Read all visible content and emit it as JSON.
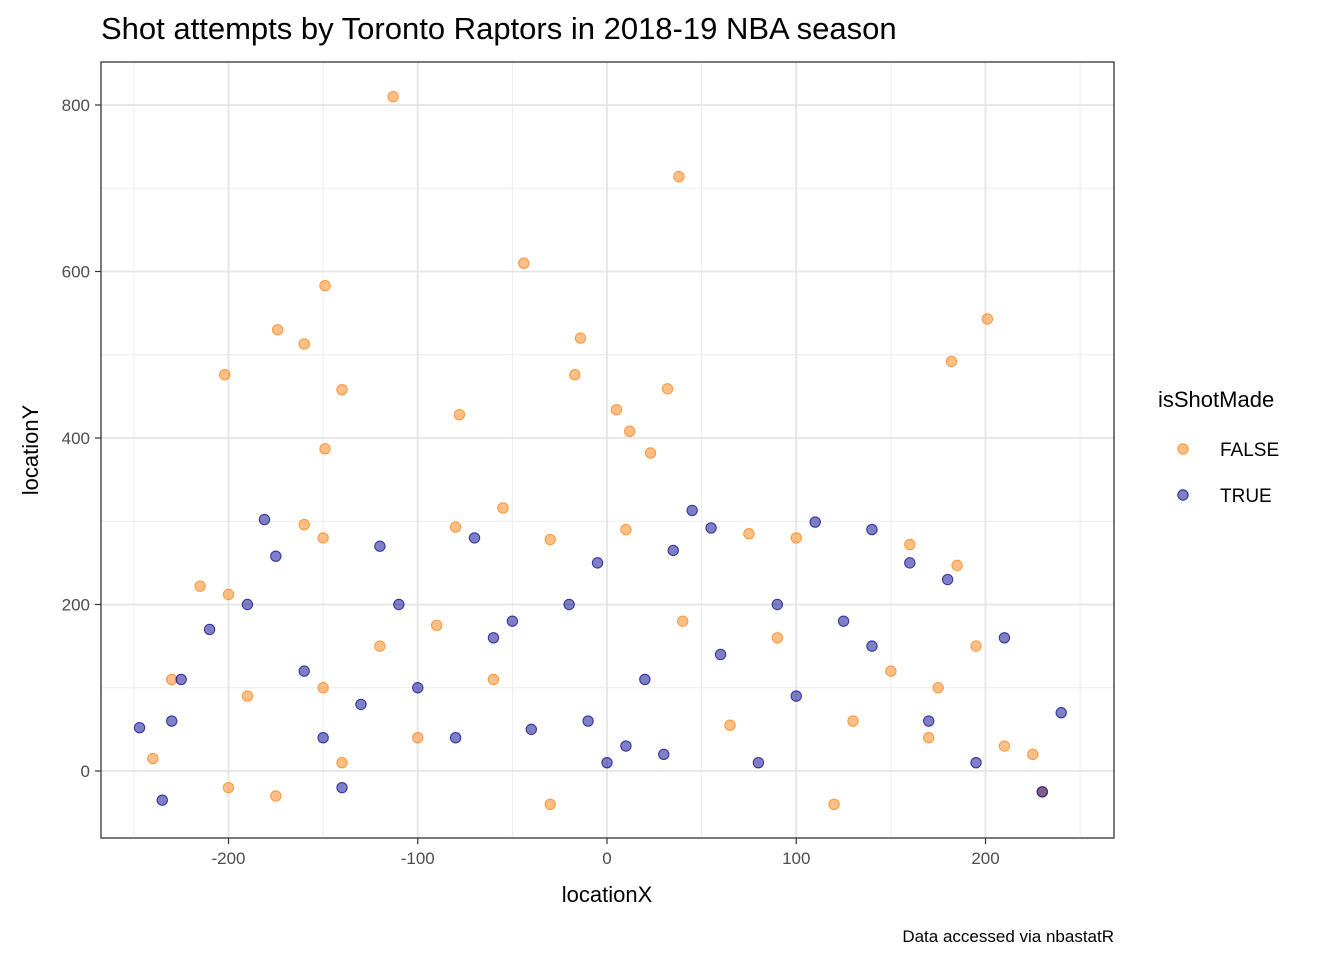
{
  "chart_data": {
    "type": "scatter",
    "title": "Shot attempts by Toronto Raptors in 2018-19 NBA season",
    "caption": "Data accessed via nbastatR",
    "xlabel": "locationX",
    "ylabel": "locationY",
    "xlim": [
      -250,
      250
    ],
    "ylim": [
      -50,
      815
    ],
    "x_ticks": [
      -200,
      -100,
      0,
      100,
      200
    ],
    "y_ticks": [
      0,
      200,
      400,
      600,
      800
    ],
    "x_tick_labels": [
      "-200",
      "-100",
      "0",
      "100",
      "200"
    ],
    "y_tick_labels": [
      "0",
      "200",
      "400",
      "600",
      "800"
    ],
    "grid": true,
    "legend": {
      "title": "isShotMade",
      "position": "right"
    },
    "series": [
      {
        "name": "FALSE",
        "color": "#FF7F0E",
        "points": [
          [
            -113,
            810
          ],
          [
            38,
            714
          ],
          [
            -44,
            610
          ],
          [
            -149,
            583
          ],
          [
            201,
            543
          ],
          [
            -174,
            530
          ],
          [
            -160,
            513
          ],
          [
            -14,
            520
          ],
          [
            182,
            492
          ],
          [
            -202,
            476
          ],
          [
            -17,
            476
          ],
          [
            -140,
            458
          ],
          [
            32,
            459
          ],
          [
            5,
            434
          ],
          [
            -78,
            428
          ],
          [
            12,
            408
          ],
          [
            23,
            382
          ],
          [
            -149,
            387
          ],
          [
            -55,
            316
          ],
          [
            -160,
            296
          ],
          [
            -150,
            280
          ],
          [
            -80,
            293
          ],
          [
            -30,
            278
          ],
          [
            10,
            290
          ],
          [
            75,
            285
          ],
          [
            100,
            280
          ],
          [
            160,
            272
          ],
          [
            185,
            247
          ],
          [
            -200,
            212
          ],
          [
            -215,
            222
          ],
          [
            -230,
            110
          ],
          [
            -240,
            15
          ],
          [
            -200,
            -20
          ],
          [
            -175,
            -30
          ],
          [
            -30,
            -40
          ],
          [
            120,
            -40
          ],
          [
            225,
            20
          ],
          [
            230,
            -25
          ],
          [
            -120,
            150
          ],
          [
            -90,
            175
          ],
          [
            40,
            180
          ],
          [
            90,
            160
          ],
          [
            150,
            120
          ],
          [
            175,
            100
          ],
          [
            -60,
            110
          ],
          [
            -150,
            100
          ],
          [
            210,
            30
          ],
          [
            195,
            150
          ],
          [
            -190,
            90
          ],
          [
            65,
            55
          ],
          [
            -100,
            40
          ],
          [
            130,
            60
          ],
          [
            170,
            40
          ],
          [
            -140,
            10
          ]
        ]
      },
      {
        "name": "TRUE",
        "color": "#00008B",
        "points": [
          [
            -181,
            302
          ],
          [
            45,
            313
          ],
          [
            110,
            299
          ],
          [
            140,
            290
          ],
          [
            55,
            292
          ],
          [
            -70,
            280
          ],
          [
            -120,
            270
          ],
          [
            160,
            250
          ],
          [
            -175,
            258
          ],
          [
            -247,
            52
          ],
          [
            -235,
            -35
          ],
          [
            230,
            -25
          ],
          [
            240,
            70
          ],
          [
            -230,
            60
          ],
          [
            -225,
            110
          ],
          [
            -210,
            170
          ],
          [
            -190,
            200
          ],
          [
            210,
            160
          ],
          [
            180,
            230
          ],
          [
            -160,
            120
          ],
          [
            -130,
            80
          ],
          [
            -100,
            100
          ],
          [
            -60,
            160
          ],
          [
            -20,
            200
          ],
          [
            20,
            110
          ],
          [
            60,
            140
          ],
          [
            100,
            90
          ],
          [
            140,
            150
          ],
          [
            170,
            60
          ],
          [
            -80,
            40
          ],
          [
            -40,
            50
          ],
          [
            0,
            10
          ],
          [
            10,
            30
          ],
          [
            -10,
            60
          ],
          [
            30,
            20
          ],
          [
            80,
            10
          ],
          [
            -140,
            -20
          ],
          [
            -50,
            180
          ],
          [
            90,
            200
          ],
          [
            125,
            180
          ],
          [
            -110,
            200
          ],
          [
            -5,
            250
          ],
          [
            35,
            265
          ],
          [
            -150,
            40
          ],
          [
            195,
            10
          ]
        ]
      }
    ]
  }
}
